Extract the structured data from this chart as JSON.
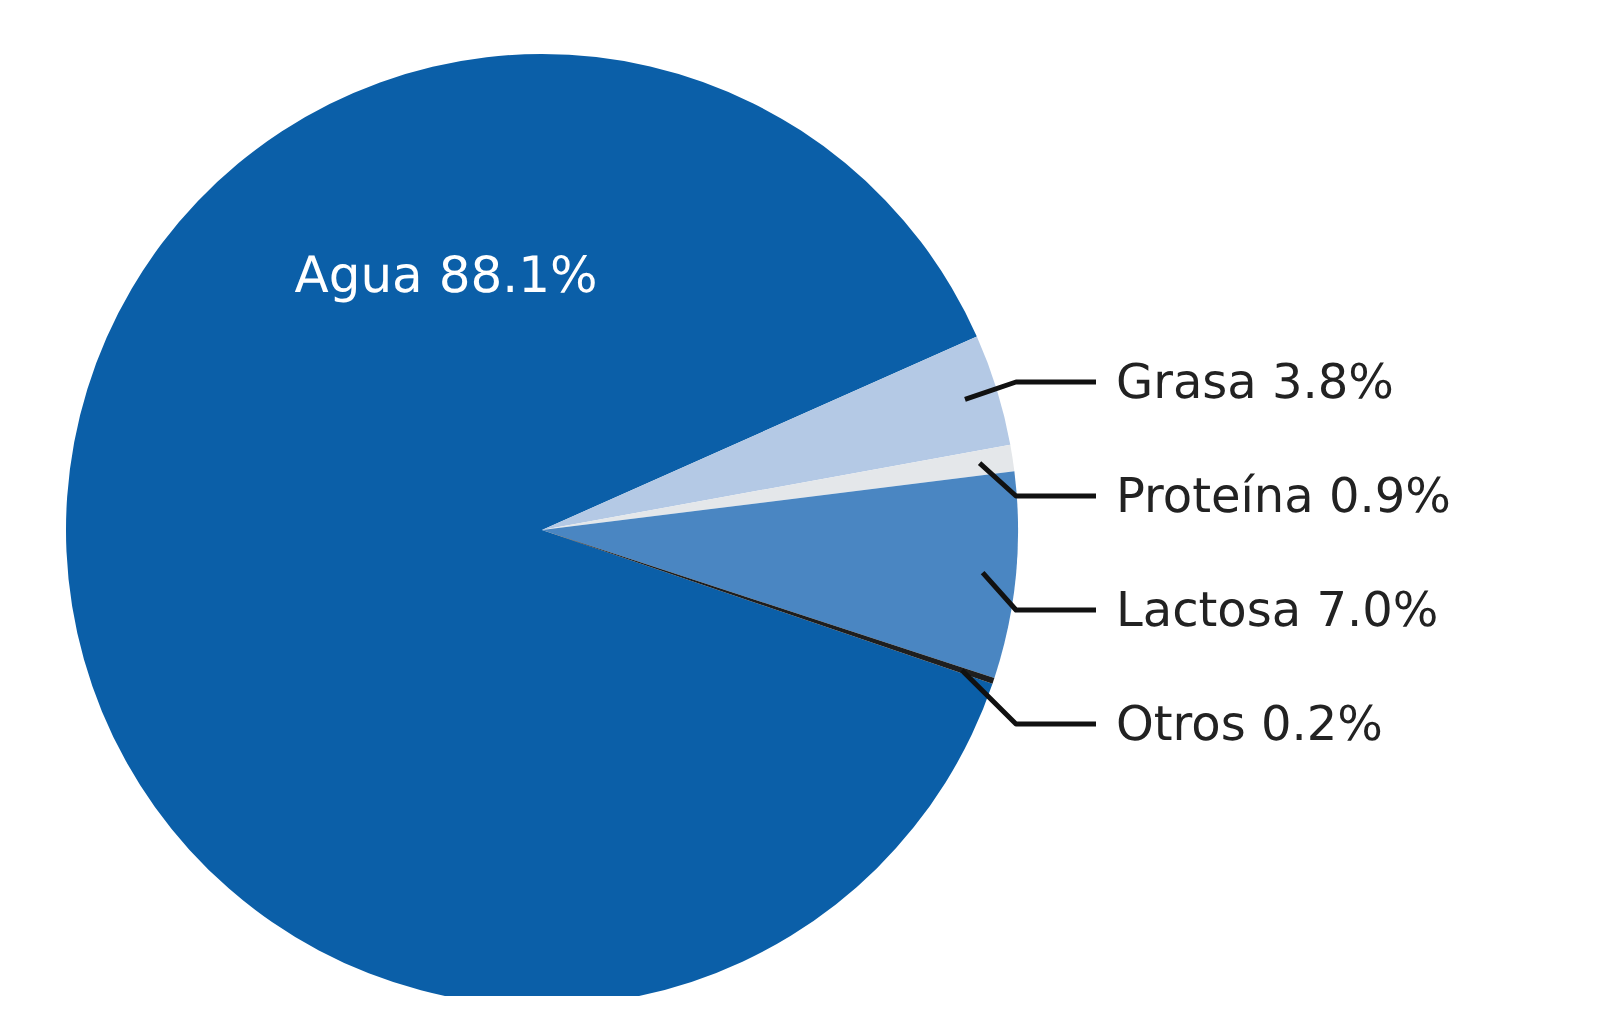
{
  "chart_data": {
    "type": "pie",
    "categories": [
      "Agua",
      "Grasa",
      "Proteína",
      "Lactosa",
      "Otros"
    ],
    "values": [
      88.1,
      3.8,
      0.9,
      7.0,
      0.2
    ],
    "value_labels": [
      "88.1%",
      "3.8%",
      "0.9%",
      "7.0%",
      "0.2%"
    ],
    "colors": [
      "#0b5fa8",
      "#b4c9e5",
      "#e4e7ea",
      "#4a86c2",
      "#1e1e1e"
    ],
    "legend": false
  }
}
